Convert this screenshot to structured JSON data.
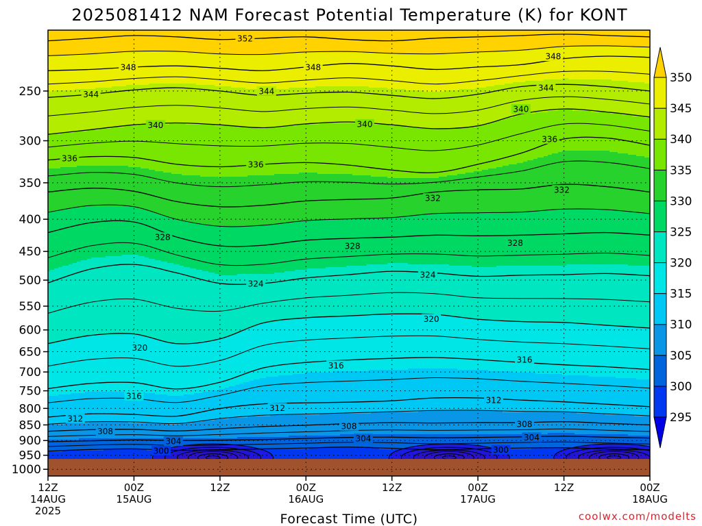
{
  "chart_data": {
    "type": "heatmap",
    "title": "2025081412 NAM Forecast Potential Temperature (K) for KONT",
    "xlabel": "Forecast Time (UTC)",
    "ylabel": "",
    "credit": "coolwx.com/modelts",
    "x_ticks": [
      {
        "hour": 0,
        "l1": "12Z",
        "l2": "14AUG",
        "l3": "2025"
      },
      {
        "hour": 12,
        "l1": "00Z",
        "l2": "15AUG",
        "l3": ""
      },
      {
        "hour": 24,
        "l1": "12Z",
        "l2": "",
        "l3": ""
      },
      {
        "hour": 36,
        "l1": "00Z",
        "l2": "16AUG",
        "l3": ""
      },
      {
        "hour": 48,
        "l1": "12Z",
        "l2": "",
        "l3": ""
      },
      {
        "hour": 60,
        "l1": "00Z",
        "l2": "17AUG",
        "l3": ""
      },
      {
        "hour": 72,
        "l1": "12Z",
        "l2": "",
        "l3": ""
      },
      {
        "hour": 84,
        "l1": "00Z",
        "l2": "18AUG",
        "l3": ""
      }
    ],
    "x_range_hours": [
      0,
      84
    ],
    "y_ticks": [
      250,
      300,
      350,
      400,
      450,
      500,
      550,
      600,
      650,
      700,
      750,
      800,
      850,
      900,
      950,
      1000
    ],
    "y_range_hpa": [
      200,
      1025
    ],
    "y_scale": "log",
    "surface_pressure_hpa": 963,
    "grid": "dotted",
    "colorbar": {
      "levels": [
        295,
        300,
        305,
        310,
        315,
        320,
        325,
        330,
        335,
        340,
        345,
        350
      ],
      "labels": [
        "295",
        "305",
        "315",
        "325",
        "335",
        "345",
        "300",
        "310",
        "320",
        "330",
        "340",
        "350"
      ],
      "colors": [
        "#0000e6",
        "#0037f0",
        "#0064dc",
        "#0a96e6",
        "#00c8f5",
        "#00e6e6",
        "#00e6c0",
        "#00d864",
        "#28d22c",
        "#78e600",
        "#b4ec00",
        "#ecee00",
        "#ffd200"
      ]
    },
    "isentropes": [
      {
        "theta": 352,
        "p": [
          208,
          206,
          204,
          205,
          207,
          206,
          205,
          207,
          208,
          206,
          205,
          204,
          203,
          204,
          205
        ]
      },
      {
        "theta": 348,
        "p": [
          232,
          231,
          229,
          228,
          230,
          232,
          229,
          226,
          228,
          231,
          229,
          227,
          222,
          220,
          221
        ]
      },
      {
        "theta": 344,
        "p": [
          256,
          253,
          249,
          247,
          250,
          254,
          252,
          251,
          254,
          257,
          253,
          246,
          244,
          246,
          250
        ]
      },
      {
        "theta": 340,
        "p": [
          293,
          288,
          283,
          281,
          283,
          286,
          282,
          280,
          283,
          287,
          284,
          272,
          267,
          270,
          275
        ]
      },
      {
        "theta": 336,
        "p": [
          322,
          318,
          319,
          327,
          330,
          327,
          325,
          328,
          334,
          337,
          327,
          314,
          298,
          297,
          305
        ]
      },
      {
        "theta": 332,
        "p": [
          362,
          357,
          361,
          375,
          382,
          380,
          374,
          372,
          370,
          362,
          359,
          358,
          352,
          355,
          362
        ]
      },
      {
        "theta": 328,
        "p": [
          420,
          405,
          404,
          427,
          441,
          440,
          432,
          429,
          427,
          424,
          425,
          424,
          422,
          420,
          424
        ]
      },
      {
        "theta": 324,
        "p": [
          505,
          480,
          472,
          487,
          506,
          506,
          496,
          490,
          484,
          487,
          493,
          491,
          490,
          488,
          492
        ]
      },
      {
        "theta": 320,
        "p": [
          631,
          612,
          609,
          631,
          620,
          585,
          574,
          570,
          566,
          567,
          577,
          582,
          584,
          590,
          596
        ]
      },
      {
        "theta": 316,
        "p": [
          744,
          730,
          728,
          745,
          727,
          690,
          676,
          670,
          666,
          664,
          669,
          676,
          682,
          687,
          694
        ]
      },
      {
        "theta": 312,
        "p": [
          826,
          816,
          818,
          823,
          800,
          787,
          784,
          782,
          778,
          770,
          770,
          776,
          781,
          788,
          795
        ]
      },
      {
        "theta": 308,
        "p": [
          870,
          865,
          864,
          869,
          862,
          855,
          851,
          846,
          843,
          844,
          843,
          843,
          840,
          845,
          850
        ]
      },
      {
        "theta": 304,
        "p": [
          904,
          901,
          898,
          900,
          899,
          897,
          893,
          890,
          889,
          891,
          890,
          888,
          886,
          889,
          892
        ]
      },
      {
        "theta": 300,
        "p": [
          936,
          930,
          928,
          933,
          931,
          928,
          925,
          922,
          926,
          931,
          928,
          925,
          924,
          928,
          931
        ]
      }
    ],
    "contour_labels": [
      {
        "text": "352",
        "hour": 27.5,
        "p": 206
      },
      {
        "text": "348",
        "hour": 11.2,
        "p": 229
      },
      {
        "text": "348",
        "hour": 37.0,
        "p": 229
      },
      {
        "text": "348",
        "hour": 70.5,
        "p": 220
      },
      {
        "text": "344",
        "hour": 6.0,
        "p": 253
      },
      {
        "text": "344",
        "hour": 30.5,
        "p": 250
      },
      {
        "text": "344",
        "hour": 69.5,
        "p": 247
      },
      {
        "text": "340",
        "hour": 15.0,
        "p": 283
      },
      {
        "text": "340",
        "hour": 44.2,
        "p": 282
      },
      {
        "text": "340",
        "hour": 66.0,
        "p": 267
      },
      {
        "text": "336",
        "hour": 3.0,
        "p": 320
      },
      {
        "text": "336",
        "hour": 29.0,
        "p": 327
      },
      {
        "text": "336",
        "hour": 70.0,
        "p": 298
      },
      {
        "text": "332",
        "hour": 53.7,
        "p": 370
      },
      {
        "text": "332",
        "hour": 71.7,
        "p": 359
      },
      {
        "text": "328",
        "hour": 16.0,
        "p": 427
      },
      {
        "text": "328",
        "hour": 42.5,
        "p": 441
      },
      {
        "text": "328",
        "hour": 65.2,
        "p": 436
      },
      {
        "text": "324",
        "hour": 29.0,
        "p": 506
      },
      {
        "text": "324",
        "hour": 53.0,
        "p": 490
      },
      {
        "text": "320",
        "hour": 12.8,
        "p": 640
      },
      {
        "text": "320",
        "hour": 53.5,
        "p": 576
      },
      {
        "text": "316",
        "hour": 12.0,
        "p": 764
      },
      {
        "text": "316",
        "hour": 40.2,
        "p": 683
      },
      {
        "text": "316",
        "hour": 66.5,
        "p": 669
      },
      {
        "text": "312",
        "hour": 3.8,
        "p": 830
      },
      {
        "text": "312",
        "hour": 32.0,
        "p": 798
      },
      {
        "text": "312",
        "hour": 62.2,
        "p": 776
      },
      {
        "text": "308",
        "hour": 8.0,
        "p": 870
      },
      {
        "text": "308",
        "hour": 42.0,
        "p": 853
      },
      {
        "text": "308",
        "hour": 66.5,
        "p": 847
      },
      {
        "text": "304",
        "hour": 17.5,
        "p": 902
      },
      {
        "text": "304",
        "hour": 44.0,
        "p": 893
      },
      {
        "text": "304",
        "hour": 67.5,
        "p": 889
      },
      {
        "text": "300",
        "hour": 15.8,
        "p": 934
      },
      {
        "text": "300",
        "hour": 63.2,
        "p": 931
      }
    ]
  }
}
